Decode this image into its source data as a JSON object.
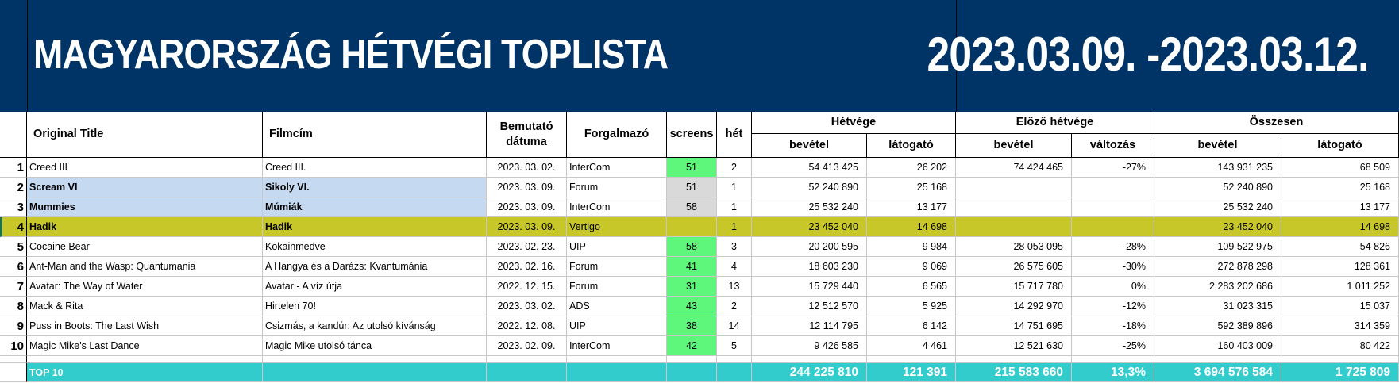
{
  "banner": {
    "title": "MAGYARORSZÁG HÉTVÉGI TOPLISTA",
    "date_range": "2023.03.09. -2023.03.12."
  },
  "headers": {
    "original_title": "Original Title",
    "filmcim": "Filmcím",
    "bemutato": "Bemutató dátuma",
    "forgalmazo": "Forgalmazó",
    "screens": "screens",
    "het": "hét",
    "hetvege": "Hétvége",
    "elozo_hetvege": "Előző hétvége",
    "osszesen": "Összesen",
    "bevetel": "bevétel",
    "latogato": "látogató",
    "valtozas": "változás"
  },
  "rows": [
    {
      "rank": "1",
      "original": "Creed III",
      "hu": "Creed III.",
      "date": "2023. 03. 02.",
      "dist": "InterCom",
      "screens": "51",
      "week": "2",
      "rev": "54 413 425",
      "adm": "26 202",
      "prev": "74 424 465",
      "chg": "-27%",
      "tot_rev": "143 931 235",
      "tot_adm": "68 509",
      "style": "normal",
      "screens_color": "green"
    },
    {
      "rank": "2",
      "original": "Scream VI",
      "hu": "Sikoly VI.",
      "date": "2023. 03. 09.",
      "dist": "Forum",
      "screens": "51",
      "week": "1",
      "rev": "52 240 890",
      "adm": "25 168",
      "prev": "",
      "chg": "",
      "tot_rev": "52 240 890",
      "tot_adm": "25 168",
      "style": "new",
      "screens_color": "grey"
    },
    {
      "rank": "3",
      "original": "Mummies",
      "hu": "Múmiák",
      "date": "2023. 03. 09.",
      "dist": "InterCom",
      "screens": "58",
      "week": "1",
      "rev": "25 532 240",
      "adm": "13 177",
      "prev": "",
      "chg": "",
      "tot_rev": "25 532 240",
      "tot_adm": "13 177",
      "style": "new",
      "screens_color": "grey"
    },
    {
      "rank": "4",
      "original": "Hadik",
      "hu": "Hadik",
      "date": "2023. 03. 09.",
      "dist": "Vertigo",
      "screens": "",
      "week": "1",
      "rev": "23 452 040",
      "adm": "14 698",
      "prev": "",
      "chg": "",
      "tot_rev": "23 452 040",
      "tot_adm": "14 698",
      "style": "hungarian",
      "screens_color": "olive"
    },
    {
      "rank": "5",
      "original": "Cocaine Bear",
      "hu": "Kokainmedve",
      "date": "2023. 02. 23.",
      "dist": "UIP",
      "screens": "58",
      "week": "3",
      "rev": "20 200 595",
      "adm": "9 984",
      "prev": "28 053 095",
      "chg": "-28%",
      "tot_rev": "109 522 975",
      "tot_adm": "54 826",
      "style": "normal",
      "screens_color": "green"
    },
    {
      "rank": "6",
      "original": "Ant-Man and the Wasp: Quantumania",
      "hu": "A Hangya és a Darázs: Kvantumánia",
      "date": "2023. 02. 16.",
      "dist": "Forum",
      "screens": "41",
      "week": "4",
      "rev": "18 603 230",
      "adm": "9 069",
      "prev": "26 575 605",
      "chg": "-30%",
      "tot_rev": "272 878 298",
      "tot_adm": "128 361",
      "style": "normal",
      "screens_color": "green"
    },
    {
      "rank": "7",
      "original": "Avatar: The Way of Water",
      "hu": "Avatar - A víz útja",
      "date": "2022. 12. 15.",
      "dist": "Forum",
      "screens": "31",
      "week": "13",
      "rev": "15 729 440",
      "adm": "6 565",
      "prev": "15 717 780",
      "chg": "0%",
      "tot_rev": "2 283 202 686",
      "tot_adm": "1 011 252",
      "style": "normal",
      "screens_color": "green"
    },
    {
      "rank": "8",
      "original": "Mack & Rita",
      "hu": "Hirtelen 70!",
      "date": "2023. 03. 02.",
      "dist": "ADS",
      "screens": "43",
      "week": "2",
      "rev": "12 512 570",
      "adm": "5 925",
      "prev": "14 292 970",
      "chg": "-12%",
      "tot_rev": "31 023 315",
      "tot_adm": "15 037",
      "style": "normal",
      "screens_color": "green"
    },
    {
      "rank": "9",
      "original": "Puss in Boots: The Last Wish",
      "hu": "Csizmás, a kandúr: Az utolsó kívánság",
      "date": "2022. 12. 08.",
      "dist": "UIP",
      "screens": "38",
      "week": "14",
      "rev": "12 114 795",
      "adm": "6 142",
      "prev": "14 751 695",
      "chg": "-18%",
      "tot_rev": "592 389 896",
      "tot_adm": "314 359",
      "style": "normal",
      "screens_color": "green"
    },
    {
      "rank": "10",
      "original": "Magic Mike's Last Dance",
      "hu": "Magic Mike utolsó tánca",
      "date": "2023. 02. 09.",
      "dist": "InterCom",
      "screens": "42",
      "week": "5",
      "rev": "9 426 585",
      "adm": "4 461",
      "prev": "12 521 630",
      "chg": "-25%",
      "tot_rev": "160 403 009",
      "tot_adm": "80 422",
      "style": "normal",
      "screens_color": "green"
    }
  ],
  "totals": {
    "label": "TOP 10",
    "rev": "244 225 810",
    "adm": "121 391",
    "prev": "215 583 660",
    "chg": "13,3%",
    "tot_rev": "3 694 576 584",
    "tot_adm": "1 725 809"
  },
  "colors": {
    "banner": "#003366",
    "screens_green": "#5ef77c",
    "new_release_blue": "#c5d9f1",
    "hungarian_olive": "#c7c72a",
    "totals_teal": "#33cccc"
  }
}
